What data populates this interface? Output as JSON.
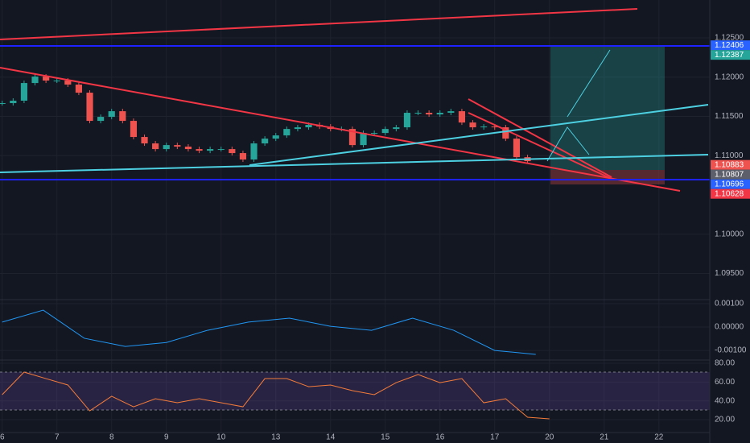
{
  "chart_data": [
    {
      "type": "candlestick",
      "x": [
        0,
        0.2,
        0.4,
        0.6,
        0.8,
        1,
        1.2,
        1.4,
        1.6,
        1.8,
        2,
        2.2,
        2.4,
        2.6,
        2.8,
        3,
        3.2,
        3.4,
        3.6,
        3.8,
        4,
        4.2,
        4.4,
        4.6,
        4.8,
        5,
        5.2,
        5.4,
        5.6,
        5.8,
        6,
        6.2,
        6.4,
        6.6,
        6.8,
        7,
        7.2,
        7.4,
        7.6,
        7.8,
        8,
        8.2,
        8.4,
        8.6,
        8.8,
        9,
        9.2,
        9.4,
        9.6
      ],
      "values": [
        1.11669,
        1.117,
        1.11925,
        1.12007,
        1.11956,
        1.11956,
        1.11905,
        1.11802,
        1.11443,
        1.11494,
        1.11566,
        1.11443,
        1.11238,
        1.11156,
        1.11084,
        1.11135,
        1.11115,
        1.11084,
        1.11063,
        1.11084,
        1.11084,
        1.11033,
        1.10951,
        1.11156,
        1.11217,
        1.11258,
        1.1134,
        1.11361,
        1.11392,
        1.11371,
        1.1134,
        1.1134,
        1.11135,
        1.11289,
        1.11289,
        1.1134,
        1.11361,
        1.11546,
        1.11546,
        1.11525,
        1.11546,
        1.11566,
        1.11422,
        1.11361,
        1.11371,
        1.11361,
        1.11217,
        1.10981,
        1.1093
      ],
      "up_color": "#26a69a",
      "down_color": "#ef5350",
      "xlim": [
        -0.04,
        12.93
      ],
      "xticks": [
        {
          "value": 0,
          "label": "6"
        },
        {
          "value": 1,
          "label": "7"
        },
        {
          "value": 2,
          "label": "8"
        },
        {
          "value": 3,
          "label": "9"
        },
        {
          "value": 4,
          "label": "10"
        },
        {
          "value": 5,
          "label": "13"
        },
        {
          "value": 6,
          "label": "14"
        },
        {
          "value": 7,
          "label": "15"
        },
        {
          "value": 8,
          "label": "16"
        },
        {
          "value": 9,
          "label": "17"
        },
        {
          "value": 10,
          "label": "20"
        },
        {
          "value": 11,
          "label": "21"
        },
        {
          "value": 12,
          "label": "22"
        }
      ],
      "ylim": [
        1.09167,
        1.12982
      ],
      "yticks": [
        {
          "value": 1.125,
          "label": "1.12500"
        },
        {
          "value": 1.12,
          "label": "1.12000"
        },
        {
          "value": 1.115,
          "label": "1.11500"
        },
        {
          "value": 1.11,
          "label": "1.11000"
        },
        {
          "value": 1.1,
          "label": "1.10000"
        },
        {
          "value": 1.095,
          "label": "1.09500"
        }
      ],
      "price_labels": [
        {
          "value": 1.12406,
          "label": "1.12406",
          "color": "#2962ff"
        },
        {
          "value": 1.12387,
          "label": "1.12387",
          "color": "#26a69a"
        },
        {
          "value": 1.10883,
          "label": "1.10883",
          "color": "#ef5350"
        },
        {
          "value": 1.10807,
          "label": "1.10807",
          "color": "#5d606b"
        },
        {
          "value": 1.10696,
          "label": "1.10696",
          "color": "#2962ff"
        },
        {
          "value": 1.10628,
          "label": "1.10628",
          "color": "#f23645"
        }
      ],
      "grid": true
    },
    {
      "type": "line",
      "x": [
        0,
        0.75,
        1.5,
        2.25,
        3,
        3.75,
        4.5,
        5.25,
        6,
        6.75,
        7.5,
        8.25,
        9,
        9.75
      ],
      "values": [
        0.00021,
        0.00072,
        -0.00048,
        -0.00083,
        -0.00066,
        -0.00014,
        0.00021,
        0.00038,
        3e-05,
        -0.00014,
        0.00038,
        -0.00014,
        -0.001,
        -0.00117
      ],
      "color": "#2196f3",
      "ylim": [
        -0.00141,
        0.00117
      ],
      "yticks": [
        {
          "value": 0.001,
          "label": "0.00100"
        },
        {
          "value": 0,
          "label": "0.00000"
        },
        {
          "value": -0.001,
          "label": "-0.00100"
        }
      ]
    },
    {
      "type": "line",
      "x": [
        0,
        0.4,
        0.8,
        1.2,
        1.6,
        2,
        2.4,
        2.8,
        3.2,
        3.6,
        4,
        4.4,
        4.8,
        5.2,
        5.6,
        6,
        6.4,
        6.8,
        7.2,
        7.6,
        8,
        8.4,
        8.8,
        9.2,
        9.6,
        10
      ],
      "values": [
        46.6,
        70.6,
        63.7,
        56.9,
        29.4,
        44.9,
        33.7,
        42.3,
        38,
        42.3,
        38,
        33.7,
        63.7,
        63.7,
        55.1,
        56.9,
        50.9,
        46.6,
        59.4,
        68,
        59.4,
        63.7,
        38,
        42.3,
        22.6,
        20.9
      ],
      "color": "#f57c3a",
      "ylim": [
        6.3,
        82.6
      ],
      "yticks": [
        {
          "value": 80,
          "label": "80.00"
        },
        {
          "value": 60,
          "label": "60.00"
        },
        {
          "value": 40,
          "label": "40.00"
        },
        {
          "value": 20,
          "label": "20.00"
        }
      ]
    }
  ]
}
